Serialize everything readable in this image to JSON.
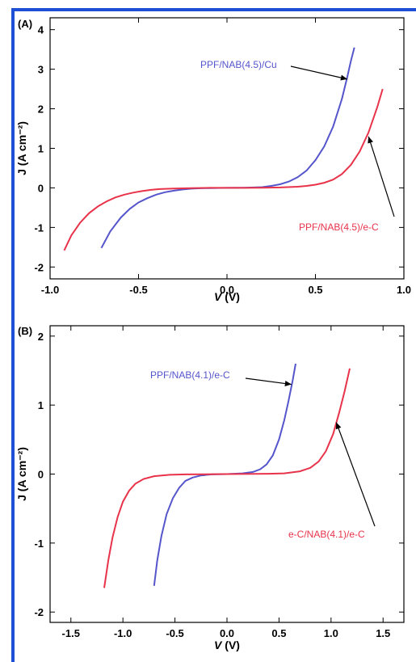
{
  "colors": {
    "frame": "#1f4fd6",
    "blue_series": "#5555cc",
    "red_series": "#e8334a"
  },
  "chart_data": [
    {
      "type": "line",
      "panel_label": "(A)",
      "xlabel_var": "V",
      "xlabel_unit": "(V)",
      "ylabel": "J (A cm⁻²)",
      "xlim": [
        -1.0,
        1.0
      ],
      "ylim": [
        -2.3,
        4.3
      ],
      "xticks": [
        -1.0,
        -0.5,
        0.0,
        0.5,
        1.0
      ],
      "xtick_labels": [
        "-1.0",
        "-0.5",
        "0.0",
        "0.5",
        "1.0"
      ],
      "yticks": [
        -2,
        -1,
        0,
        1,
        2,
        3,
        4
      ],
      "ytick_labels": [
        "-2",
        "-1",
        "0",
        "1",
        "2",
        "3",
        "4"
      ],
      "grid": false,
      "series": [
        {
          "name": "PPF/NAB(4.5)/Cu",
          "color": "#5555cc",
          "x": [
            -0.71,
            -0.66,
            -0.6,
            -0.55,
            -0.5,
            -0.45,
            -0.4,
            -0.35,
            -0.3,
            -0.25,
            -0.2,
            -0.15,
            -0.1,
            0.0,
            0.1,
            0.15,
            0.2,
            0.25,
            0.3,
            0.35,
            0.4,
            0.45,
            0.5,
            0.55,
            0.6,
            0.65,
            0.68,
            0.7,
            0.72
          ],
          "values": [
            -1.52,
            -1.1,
            -0.75,
            -0.53,
            -0.37,
            -0.26,
            -0.17,
            -0.11,
            -0.07,
            -0.04,
            -0.02,
            -0.01,
            -0.005,
            0.0,
            0.005,
            0.01,
            0.02,
            0.05,
            0.09,
            0.16,
            0.27,
            0.44,
            0.7,
            1.05,
            1.55,
            2.25,
            2.8,
            3.2,
            3.55
          ]
        },
        {
          "name": "PPF/NAB(4.5)/e-C",
          "color": "#e8334a",
          "x": [
            -0.92,
            -0.88,
            -0.83,
            -0.78,
            -0.73,
            -0.68,
            -0.63,
            -0.58,
            -0.53,
            -0.48,
            -0.43,
            -0.38,
            -0.3,
            -0.2,
            -0.1,
            0.0,
            0.1,
            0.2,
            0.3,
            0.4,
            0.45,
            0.5,
            0.55,
            0.6,
            0.65,
            0.7,
            0.75,
            0.8,
            0.85,
            0.88
          ],
          "values": [
            -1.58,
            -1.2,
            -0.88,
            -0.64,
            -0.47,
            -0.34,
            -0.24,
            -0.17,
            -0.12,
            -0.08,
            -0.05,
            -0.03,
            -0.015,
            -0.005,
            0.0,
            0.0,
            0.0,
            0.005,
            0.01,
            0.03,
            0.05,
            0.08,
            0.13,
            0.21,
            0.35,
            0.58,
            0.92,
            1.4,
            2.05,
            2.5
          ]
        }
      ],
      "annotations": [
        {
          "text": "PPF/NAB(4.5)/Cu",
          "color": "#5555cc",
          "target_x": 0.68,
          "target_y": 2.75
        },
        {
          "text": "PPF/NAB(4.5)/e-C",
          "color": "#e8334a",
          "target_x": 0.8,
          "target_y": 1.3
        }
      ]
    },
    {
      "type": "line",
      "panel_label": "(B)",
      "xlabel_var": "V",
      "xlabel_unit": "(V)",
      "ylabel": "J (A cm⁻²)",
      "xlim": [
        -1.7,
        1.7
      ],
      "ylim": [
        -2.15,
        2.15
      ],
      "xticks": [
        -1.5,
        -1.0,
        -0.5,
        0.0,
        0.5,
        1.0,
        1.5
      ],
      "xtick_labels": [
        "-1.5",
        "-1.0",
        "-0.5",
        "0.0",
        "0.5",
        "1.0",
        "1.5"
      ],
      "yticks": [
        -2,
        -1,
        0,
        1,
        2
      ],
      "ytick_labels": [
        "-2",
        "-1",
        "0",
        "1",
        "2"
      ],
      "grid": false,
      "series": [
        {
          "name": "PPF/NAB(4.1)/e-C",
          "color": "#5555cc",
          "x": [
            -0.7,
            -0.67,
            -0.63,
            -0.58,
            -0.52,
            -0.46,
            -0.4,
            -0.33,
            -0.25,
            -0.15,
            0.0,
            0.15,
            0.25,
            0.32,
            0.38,
            0.44,
            0.5,
            0.55,
            0.59,
            0.63,
            0.66
          ],
          "values": [
            -1.62,
            -1.25,
            -0.9,
            -0.58,
            -0.35,
            -0.2,
            -0.1,
            -0.05,
            -0.02,
            -0.005,
            0.0,
            0.01,
            0.03,
            0.07,
            0.14,
            0.27,
            0.5,
            0.78,
            1.05,
            1.35,
            1.6
          ]
        },
        {
          "name": "e-C/NAB(4.1)/e-C",
          "color": "#e8334a",
          "x": [
            -1.18,
            -1.14,
            -1.1,
            -1.05,
            -1.0,
            -0.94,
            -0.88,
            -0.8,
            -0.7,
            -0.55,
            -0.4,
            0.0,
            0.4,
            0.55,
            0.7,
            0.8,
            0.88,
            0.95,
            1.02,
            1.08,
            1.13,
            1.18
          ],
          "values": [
            -1.65,
            -1.25,
            -0.92,
            -0.62,
            -0.4,
            -0.24,
            -0.14,
            -0.07,
            -0.03,
            -0.01,
            -0.005,
            0.0,
            0.005,
            0.01,
            0.04,
            0.09,
            0.18,
            0.33,
            0.58,
            0.9,
            1.2,
            1.53
          ]
        }
      ],
      "annotations": [
        {
          "text": "PPF/NAB(4.1)/e-C",
          "color": "#5555cc",
          "target_x": 0.62,
          "target_y": 1.3
        },
        {
          "text": "e-C/NAB(4.1)/e-C",
          "color": "#e8334a",
          "target_x": 1.05,
          "target_y": 0.75
        }
      ]
    }
  ]
}
